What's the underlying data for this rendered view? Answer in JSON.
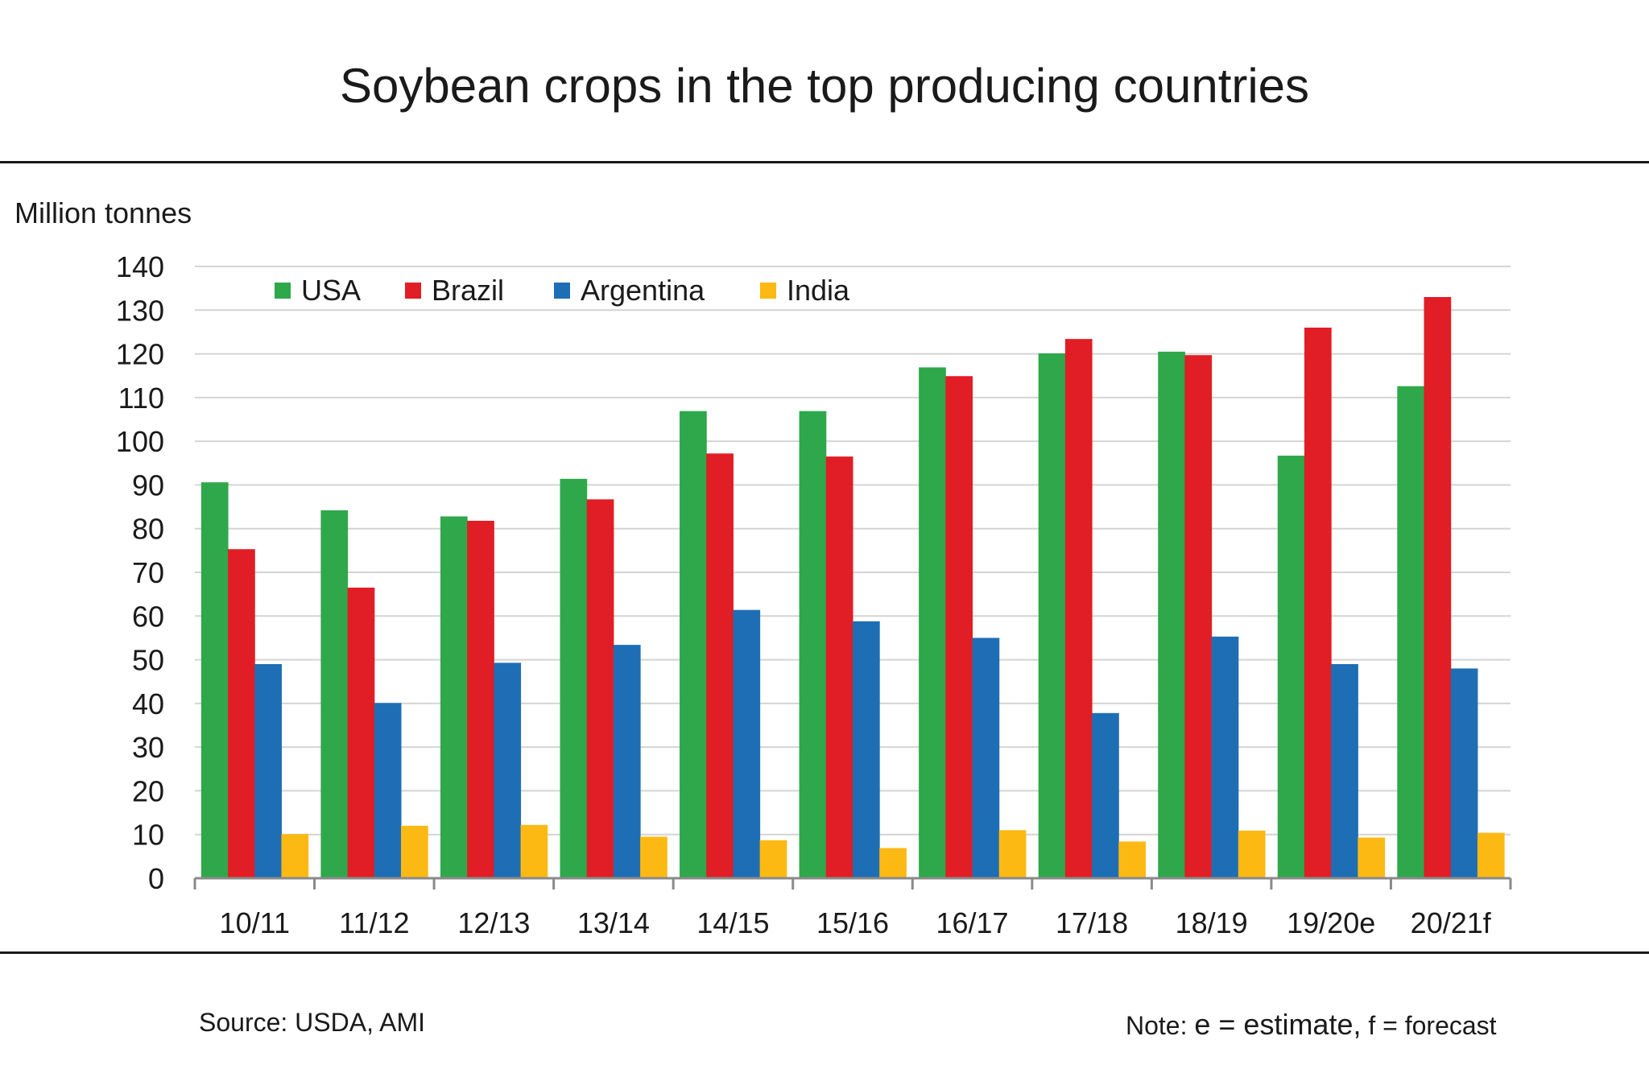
{
  "chart_data": {
    "type": "bar",
    "title": "Soybean crops in the top producing countries",
    "ylabel": "Million tonnes",
    "xlabel": "",
    "ylim": [
      0,
      140
    ],
    "ytick_step": 10,
    "grid": true,
    "legend_position": "top-left",
    "categories": [
      "10/11",
      "11/12",
      "12/13",
      "13/14",
      "14/15",
      "15/16",
      "16/17",
      "17/18",
      "18/19",
      "19/20e",
      "20/21f"
    ],
    "series": [
      {
        "name": "USA",
        "color": "#2ea84a",
        "values": [
          90.6,
          84.2,
          82.8,
          91.4,
          106.9,
          106.9,
          116.9,
          120.1,
          120.5,
          96.7,
          112.6
        ]
      },
      {
        "name": "Brazil",
        "color": "#e11d25",
        "values": [
          75.3,
          66.5,
          81.8,
          86.7,
          97.2,
          96.5,
          114.9,
          123.4,
          119.7,
          126.0,
          133.0
        ]
      },
      {
        "name": "Argentina",
        "color": "#1e6eb5",
        "values": [
          49.0,
          40.1,
          49.3,
          53.4,
          61.4,
          58.8,
          55.0,
          37.8,
          55.3,
          49.0,
          48.0
        ]
      },
      {
        "name": "India",
        "color": "#fdb913",
        "values": [
          10.1,
          12.0,
          12.2,
          9.5,
          8.7,
          6.9,
          11.0,
          8.4,
          10.9,
          9.3,
          10.4
        ]
      }
    ]
  },
  "footer": {
    "source": "Source: USDA, AMI",
    "note_prefix": "Note: ",
    "note_estimate": "e = estimate,",
    "note_forecast": " f = forecast"
  }
}
